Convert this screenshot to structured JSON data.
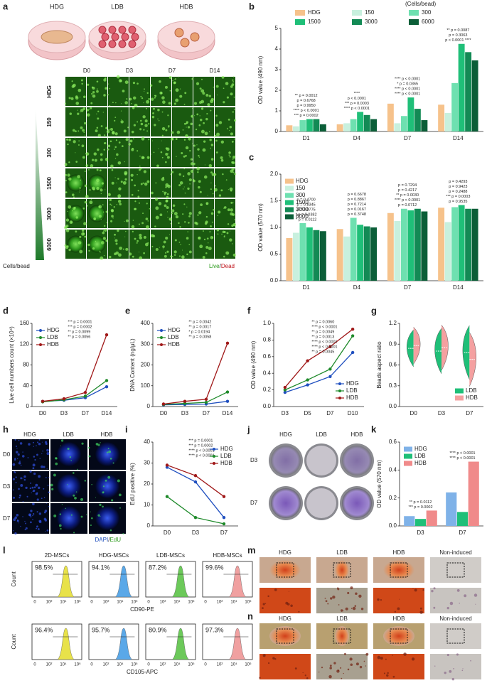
{
  "panels": {
    "a": {
      "label": "a",
      "dish_labels": [
        "HDG",
        "LDB",
        "HDB"
      ],
      "days": [
        "D0",
        "D3",
        "D7",
        "D14"
      ],
      "rows": [
        "HDG",
        "150",
        "300",
        "1500",
        "3000",
        "6000"
      ],
      "row_colors": [
        "#c0141c",
        "#222222",
        "#c0141c",
        "#c0141c",
        "#222222",
        "#222222"
      ],
      "axis_label": "Cells/bead",
      "stain_live": "Live",
      "stain_sep": "/",
      "stain_dead": "Dead"
    },
    "h": {
      "label": "h",
      "columns": [
        "HDG",
        "LDB",
        "HDB"
      ],
      "rows": [
        "D0",
        "D3",
        "D7"
      ],
      "stain_dapi": "DAPI",
      "stain_sep": "/",
      "stain_edu": "EdU"
    },
    "j": {
      "label": "j",
      "columns": [
        "HDG",
        "LDB",
        "HDB"
      ],
      "rows": [
        "D3",
        "D7"
      ]
    },
    "l": {
      "label": "l",
      "titles": [
        "2D-MSCs",
        "HDG-MSCs",
        "LDB-MSCs",
        "HDB-MSCs"
      ],
      "colors": [
        "#e8e24a",
        "#5aa8e8",
        "#6cc95a",
        "#f0a0a0"
      ],
      "y_label": "Count",
      "x_ticks": [
        "0",
        "10²",
        "10⁴",
        "10⁶"
      ],
      "rows": [
        {
          "marker": "CD90-PE",
          "percents": [
            "98.5%",
            "94.1%",
            "87.2%",
            "99.6%"
          ]
        },
        {
          "marker": "CD105-APC",
          "percents": [
            "96.4%",
            "95.7%",
            "80.9%",
            "97.3%"
          ]
        }
      ]
    },
    "m": {
      "label": "m",
      "columns": [
        "HDG",
        "LDB",
        "HDB",
        "Non-induced"
      ]
    },
    "n": {
      "label": "n",
      "columns": [
        "HDG",
        "LDB",
        "HDB",
        "Non-induced"
      ]
    }
  },
  "chart_data": [
    {
      "panel": "b",
      "type": "bar",
      "y_label": "OD value (490 nm)",
      "legend_title": "(Cells/bead)",
      "legend": "top",
      "categories": [
        "D1",
        "D4",
        "D7",
        "D14"
      ],
      "series": [
        {
          "name": "HDG",
          "color": "#f6c28b",
          "values": [
            0.3,
            0.35,
            1.35,
            1.3
          ]
        },
        {
          "name": "150",
          "color": "#c8f0de",
          "values": [
            0.25,
            0.4,
            0.4,
            0.9
          ]
        },
        {
          "name": "300",
          "color": "#6ee0b0",
          "values": [
            0.55,
            0.6,
            0.75,
            2.35
          ]
        },
        {
          "name": "1500",
          "color": "#1fbf78",
          "values": [
            0.6,
            0.95,
            1.65,
            4.25
          ]
        },
        {
          "name": "3000",
          "color": "#138a55",
          "values": [
            0.6,
            0.8,
            1.1,
            3.85
          ]
        },
        {
          "name": "6000",
          "color": "#0b5e38",
          "values": [
            0.35,
            0.6,
            0.55,
            3.45
          ]
        }
      ],
      "ylim": [
        0,
        5
      ],
      "yticks": [
        0,
        1,
        2,
        3,
        4,
        5
      ],
      "annotations": [
        [
          "*** p = 0.0002",
          "**** p < 0.0001",
          "p = 0.9950",
          "p = 0.6768",
          "** p = 0.0012"
        ],
        [
          "**** p < 0.0001",
          "*** p = 0.0003",
          "p < 0.0001",
          "****"
        ],
        [
          "**** p < 0.0001",
          "**** p < 0.0001",
          "* p = 0.0365",
          "**** p < 0.0001"
        ],
        [
          "p < 0.0001 ****",
          "p = 0.3063",
          "** p = 0.0087"
        ]
      ]
    },
    {
      "panel": "c",
      "type": "bar",
      "y_label": "OD value (570 nm)",
      "categories": [
        "D1",
        "D4",
        "D7",
        "D14"
      ],
      "series": [
        {
          "name": "HDG",
          "color": "#f6c28b",
          "values": [
            0.8,
            0.97,
            1.27,
            1.37
          ]
        },
        {
          "name": "150",
          "color": "#c8f0de",
          "values": [
            0.9,
            0.83,
            1.12,
            1.1
          ]
        },
        {
          "name": "300",
          "color": "#6ee0b0",
          "values": [
            1.08,
            1.18,
            1.35,
            1.38
          ]
        },
        {
          "name": "1500",
          "color": "#1fbf78",
          "values": [
            1.0,
            1.05,
            1.32,
            1.42
          ]
        },
        {
          "name": "3000",
          "color": "#138a55",
          "values": [
            0.95,
            1.02,
            1.35,
            1.35
          ]
        },
        {
          "name": "6000",
          "color": "#0b5e38",
          "values": [
            0.93,
            1.0,
            1.3,
            1.35
          ]
        }
      ],
      "ylim": [
        0,
        2
      ],
      "yticks": [
        {
          "value": 0,
          "label": "0.0"
        },
        0.5,
        {
          "value": 1,
          "label": "1.0"
        },
        1.5,
        {
          "value": 2,
          "label": "2.0"
        }
      ],
      "annotations": [
        [
          "* p = 0.0112",
          "* p = 0.0382",
          "p = 0.0775",
          "p = 0.8345",
          "p = 0.4700"
        ],
        [
          "p = 0.3748",
          "p = 0.0167",
          "p = 0.7214",
          "p = 0.8867",
          "p = 0.6678"
        ],
        [
          "p = 0.0712",
          "**** p < 0.0001",
          "** p = 0.0030",
          "p = 0.4217",
          "p = 0.7294"
        ],
        [
          "p = 0.9535",
          "*** p = 0.0003",
          "p = 0.2488",
          "p = 0.9423",
          "p = 0.4293"
        ]
      ]
    },
    {
      "panel": "d",
      "type": "line",
      "y_label": "Live cell numbers count (×10⁴)",
      "legend": "upper left",
      "categories": [
        "D0",
        "D3",
        "D7",
        "D14"
      ],
      "series": [
        {
          "name": "HDG",
          "color": "#1f4fbf",
          "values": [
            10,
            12,
            17,
            38
          ]
        },
        {
          "name": "LDB",
          "color": "#1e8a2a",
          "values": [
            9,
            13,
            20,
            50
          ]
        },
        {
          "name": "HDB",
          "color": "#a01818",
          "values": [
            10,
            15,
            27,
            138
          ]
        }
      ],
      "ylim": [
        0,
        160
      ],
      "yticks": [
        0,
        40,
        80,
        120,
        160
      ],
      "annotations": [
        {
          "text": "*** p = 0.0001",
          "color": "#1e8a2a"
        },
        {
          "text": "*** p = 0.0002",
          "color": "#1f4fbf"
        },
        {
          "text": "** p = 0.0099",
          "color": "#1e8a2a"
        },
        {
          "text": "** p = 0.0056",
          "color": "#1f4fbf"
        }
      ]
    },
    {
      "panel": "e",
      "type": "line",
      "y_label": "DNA Content (ng/μL)",
      "legend": "upper left",
      "categories": [
        "D0",
        "D3",
        "D7",
        "D14"
      ],
      "series": [
        {
          "name": "HDG",
          "color": "#1f4fbf",
          "values": [
            8,
            10,
            12,
            25
          ]
        },
        {
          "name": "LDB",
          "color": "#1e8a2a",
          "values": [
            10,
            15,
            20,
            70
          ]
        },
        {
          "name": "HDB",
          "color": "#a01818",
          "values": [
            12,
            25,
            35,
            305
          ]
        }
      ],
      "ylim": [
        0,
        400
      ],
      "yticks": [
        0,
        100,
        200,
        300,
        400
      ],
      "annotations": [
        {
          "text": "** p = 0.0042",
          "color": "#1e8a2a"
        },
        {
          "text": "** p = 0.0017",
          "color": "#1f4fbf"
        },
        {
          "text": "* p = 0.0194",
          "color": "#1e8a2a"
        },
        {
          "text": "** p = 0.0058",
          "color": "#1f4fbf"
        }
      ]
    },
    {
      "panel": "f",
      "type": "line",
      "y_label": "OD value (490 nm)",
      "legend": "lower right",
      "categories": [
        "D3",
        "D5",
        "D7",
        "D10"
      ],
      "series": [
        {
          "name": "HDG",
          "color": "#1f4fbf",
          "values": [
            0.17,
            0.26,
            0.36,
            0.65
          ]
        },
        {
          "name": "LDB",
          "color": "#1e8a2a",
          "values": [
            0.2,
            0.32,
            0.45,
            0.85
          ]
        },
        {
          "name": "HDB",
          "color": "#a01818",
          "values": [
            0.23,
            0.55,
            0.72,
            0.93
          ]
        }
      ],
      "ylim": [
        0,
        1
      ],
      "yticks": [
        {
          "value": 0,
          "label": "0.0"
        },
        0.2,
        0.4,
        0.6,
        0.8,
        {
          "value": 1,
          "label": "1.0"
        }
      ],
      "annotations": [
        {
          "text": "** p = 0.0060",
          "color": "#1e8a2a"
        },
        {
          "text": "**** p < 0.0001",
          "color": "#1f4fbf"
        },
        {
          "text": "** p = 0.0049",
          "color": "#1e8a2a"
        },
        {
          "text": "** p = 0.0013",
          "color": "#1f4fbf"
        },
        {
          "text": "**** p < 0.0001",
          "color": "#1e8a2a"
        },
        {
          "text": "**** p < 0.0001",
          "color": "#1f4fbf"
        },
        {
          "text": "** p = 0.0045",
          "color": "#1f4fbf"
        }
      ]
    },
    {
      "panel": "g",
      "type": "violin",
      "y_label": "Beads aspect ratio",
      "legend": "lower right",
      "categories": [
        "D0",
        "D3",
        "D7"
      ],
      "series": [
        {
          "name": "LDB",
          "color": "#1fbf78",
          "values": [
            0.84,
            0.8,
            0.78
          ]
        },
        {
          "name": "HDB",
          "color": "#f4a0a0",
          "values": [
            0.88,
            0.85,
            0.68
          ]
        }
      ],
      "ylim": [
        0,
        1.2
      ],
      "yticks": [
        {
          "value": 0,
          "label": "0.0"
        },
        0.3,
        0.6,
        0.9,
        1.2
      ]
    },
    {
      "panel": "i",
      "type": "line",
      "y_label": "EdU positive (%)",
      "legend": "upper right",
      "categories": [
        "D0",
        "D3",
        "D7"
      ],
      "series": [
        {
          "name": "HDG",
          "color": "#1f4fbf",
          "values": [
            28,
            21,
            4
          ]
        },
        {
          "name": "LDB",
          "color": "#1e8a2a",
          "values": [
            14,
            4,
            1
          ]
        },
        {
          "name": "HDB",
          "color": "#a01818",
          "values": [
            29,
            24,
            14
          ]
        }
      ],
      "ylim": [
        0,
        40
      ],
      "yticks": [
        0,
        10,
        20,
        30,
        40
      ],
      "annotations": [
        {
          "text": "*** p = 0.0001",
          "color": "#1e8a2a"
        },
        {
          "text": "*** p = 0.0002",
          "color": "#1e8a2a"
        },
        {
          "text": "**** p < 0.0001",
          "color": "#1e8a2a"
        },
        {
          "text": "**** p < 0.0001",
          "color": "#1f4fbf"
        }
      ]
    },
    {
      "panel": "k",
      "type": "bar",
      "y_label": "OD value (570 nm)",
      "legend": "upper left",
      "categories": [
        "D3",
        "D7"
      ],
      "series": [
        {
          "name": "HDG",
          "color": "#7fb2e8",
          "values": [
            0.07,
            0.24
          ]
        },
        {
          "name": "LDB",
          "color": "#1fbf78",
          "values": [
            0.05,
            0.1
          ]
        },
        {
          "name": "HDB",
          "color": "#f08a8a",
          "values": [
            0.11,
            0.46
          ]
        }
      ],
      "ylim": [
        0,
        0.6
      ],
      "yticks": [
        {
          "value": 0,
          "label": "0.0"
        },
        0.2,
        0.4,
        0.6
      ],
      "annotations": [
        [
          "*** p = 0.0002",
          "** p = 0.0112"
        ],
        [
          "**** p < 0.0001",
          "**** p < 0.0001"
        ]
      ]
    }
  ]
}
